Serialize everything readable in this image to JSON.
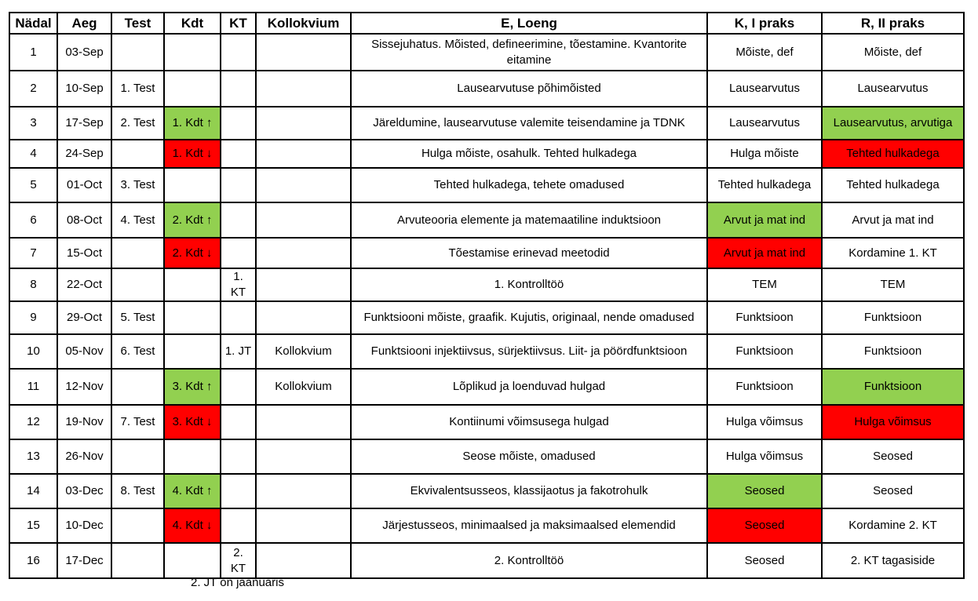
{
  "headers": [
    "Nädal",
    "Aeg",
    "Test",
    "Kdt",
    "KT",
    "Kollokvium",
    "E, Loeng",
    "K, I praks",
    "R, II praks"
  ],
  "colors": {
    "green": "#92d050",
    "red": "#ff0000"
  },
  "rows": [
    {
      "week": "1",
      "date": "03-Sep",
      "test": "",
      "kdt": "",
      "kt": "",
      "kollokvium": "",
      "lecture": "Sissejuhatus. Mõisted, defineerimine, tõestamine. Kvantorite eitamine",
      "practice1": "Mõiste, def",
      "practice2": "Mõiste, def"
    },
    {
      "week": "2",
      "date": "10-Sep",
      "test": "1. Test",
      "kdt": "",
      "kt": "",
      "kollokvium": "",
      "lecture": "Lausearvutuse põhimõisted",
      "practice1": "Lausearvutus",
      "practice2": "Lausearvutus"
    },
    {
      "week": "3",
      "date": "17-Sep",
      "test": "2. Test",
      "kdt": "1. Kdt ↑",
      "kt": "",
      "kollokvium": "",
      "lecture": "Järeldumine, lausearvutuse valemite teisendamine ja TDNK",
      "practice1": "Lausearvutus",
      "practice2": "Lausearvutus, arvutiga"
    },
    {
      "week": "4",
      "date": "24-Sep",
      "test": "",
      "kdt": "1. Kdt ↓",
      "kt": "",
      "kollokvium": "",
      "lecture": "Hulga mõiste, osahulk. Tehted hulkadega",
      "practice1": "Hulga mõiste",
      "practice2": "Tehted hulkadega"
    },
    {
      "week": "5",
      "date": "01-Oct",
      "test": "3. Test",
      "kdt": "",
      "kt": "",
      "kollokvium": "",
      "lecture": "Tehted hulkadega, tehete omadused",
      "practice1": "Tehted hulkadega",
      "practice2": "Tehted hulkadega"
    },
    {
      "week": "6",
      "date": "08-Oct",
      "test": "4. Test",
      "kdt": "2. Kdt ↑",
      "kt": "",
      "kollokvium": "",
      "lecture": "Arvuteooria elemente ja matemaatiline induktsioon",
      "practice1": "Arvut ja mat ind",
      "practice2": "Arvut ja mat ind"
    },
    {
      "week": "7",
      "date": "15-Oct",
      "test": "",
      "kdt": "2. Kdt ↓",
      "kt": "",
      "kollokvium": "",
      "lecture": "Tõestamise erinevad meetodid",
      "practice1": "Arvut ja mat ind",
      "practice2": "Kordamine 1. KT"
    },
    {
      "week": "8",
      "date": "22-Oct",
      "test": "",
      "kdt": "",
      "kt": "1. KT",
      "kollokvium": "",
      "lecture": "1. Kontrolltöö",
      "practice1": "TEM",
      "practice2": "TEM"
    },
    {
      "week": "9",
      "date": "29-Oct",
      "test": "5. Test",
      "kdt": "",
      "kt": "",
      "kollokvium": "",
      "lecture": "Funktsiooni mõiste, graafik. Kujutis, originaal, nende omadused",
      "practice1": "Funktsioon",
      "practice2": "Funktsioon"
    },
    {
      "week": "10",
      "date": "05-Nov",
      "test": "6. Test",
      "kdt": "",
      "kt": "1. JT",
      "kollokvium": "Kollokvium",
      "lecture": "Funktsiooni injektiivsus, sürjektiivsus. Liit- ja pöördfunktsioon",
      "practice1": "Funktsioon",
      "practice2": "Funktsioon"
    },
    {
      "week": "11",
      "date": "12-Nov",
      "test": "",
      "kdt": "3. Kdt ↑",
      "kt": "",
      "kollokvium": "Kollokvium",
      "lecture": "Lõplikud ja loenduvad hulgad",
      "practice1": "Funktsioon",
      "practice2": "Funktsioon"
    },
    {
      "week": "12",
      "date": "19-Nov",
      "test": "7. Test",
      "kdt": "3. Kdt ↓",
      "kt": "",
      "kollokvium": "",
      "lecture": "Kontiinumi võimsusega hulgad",
      "practice1": "Hulga võimsus",
      "practice2": "Hulga võimsus"
    },
    {
      "week": "13",
      "date": "26-Nov",
      "test": "",
      "kdt": "",
      "kt": "",
      "kollokvium": "",
      "lecture": "Seose mõiste, omadused",
      "practice1": "Hulga võimsus",
      "practice2": "Seosed"
    },
    {
      "week": "14",
      "date": "03-Dec",
      "test": "8. Test",
      "kdt": "4. Kdt ↑",
      "kt": "",
      "kollokvium": "",
      "lecture": "Ekvivalentsusseos, klassijaotus ja fakotrohulk",
      "practice1": "Seosed",
      "practice2": "Seosed"
    },
    {
      "week": "15",
      "date": "10-Dec",
      "test": "",
      "kdt": "4. Kdt ↓",
      "kt": "",
      "kollokvium": "",
      "lecture": "Järjestusseos, minimaalsed ja maksimaalsed elemendid",
      "practice1": "Seosed",
      "practice2": "Kordamine 2. KT"
    },
    {
      "week": "16",
      "date": "17-Dec",
      "test": "",
      "kdt": "",
      "kt": "2. KT",
      "kollokvium": "",
      "lecture": "2. Kontrolltöö",
      "practice1": "Seosed",
      "practice2": "2. KT tagasiside"
    }
  ],
  "footnote": "2. JT on jaanuaris"
}
